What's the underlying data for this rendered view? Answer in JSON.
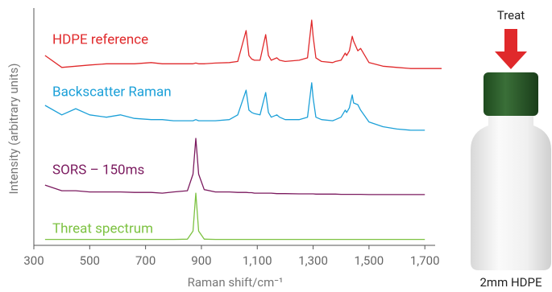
{
  "chart_data": {
    "type": "line",
    "xlabel": "Raman shift/cm⁻¹",
    "ylabel": "Intensity (arbitrary units)",
    "x": [
      340,
      400,
      450,
      500,
      560,
      610,
      660,
      720,
      760,
      800,
      850,
      870,
      880,
      890,
      910,
      950,
      1000,
      1030,
      1060,
      1070,
      1080,
      1090,
      1110,
      1130,
      1140,
      1150,
      1170,
      1180,
      1200,
      1250,
      1280,
      1295,
      1300,
      1310,
      1330,
      1370,
      1380,
      1400,
      1415,
      1420,
      1430,
      1440,
      1445,
      1460,
      1470,
      1500,
      1550,
      1600,
      1650,
      1700,
      1760
    ],
    "series": [
      {
        "name": "HDPE reference",
        "color": "#e0292b",
        "values": [
          80,
          75,
          75.5,
          76,
          76.5,
          76.5,
          76.5,
          77,
          76.5,
          76.5,
          76.5,
          76.5,
          76.8,
          76.5,
          76.5,
          76.8,
          77,
          77.5,
          90.5,
          80,
          78.5,
          78,
          78,
          88.8,
          80,
          78,
          79,
          78,
          77.5,
          78,
          79,
          94.9,
          88,
          79,
          77.5,
          77,
          77.5,
          78,
          81,
          80,
          82,
          88.1,
          86,
          82,
          83,
          77,
          75.5,
          75,
          74.5,
          74.5,
          74.5
        ]
      },
      {
        "name": "Backscatter Raman",
        "color": "#1ca0d8",
        "values": [
          59,
          55,
          57.6,
          55,
          54,
          55,
          53.5,
          53,
          53,
          52.5,
          52.5,
          52.5,
          53,
          52.5,
          52.5,
          52.5,
          53,
          55,
          65.4,
          57,
          56,
          55.5,
          55,
          64.4,
          56,
          54,
          55,
          54,
          53,
          53,
          54,
          68.5,
          62,
          54,
          53,
          52.5,
          53,
          54,
          57,
          56,
          58,
          63.4,
          60,
          59.3,
          57,
          52,
          50,
          49,
          48.5,
          48.5,
          null
        ]
      },
      {
        "name": "SORS – 150ms",
        "color": "#7b1a5f",
        "values": [
          25.4,
          23,
          23,
          22.5,
          22.5,
          22.5,
          22.3,
          22.3,
          22,
          22.5,
          23,
          30,
          45.1,
          30,
          23.5,
          22.5,
          22.5,
          22.3,
          22.3,
          22.2,
          22.2,
          22,
          22,
          22,
          22,
          22,
          21.8,
          21.8,
          21.8,
          21.7,
          21.7,
          21.7,
          21.7,
          21.6,
          21.6,
          21.6,
          21.6,
          21.5,
          21.5,
          21.5,
          21.5,
          21.5,
          21.5,
          21.5,
          21.5,
          21.4,
          21.4,
          21.4,
          21.4,
          21.4,
          null
        ]
      },
      {
        "name": "Threat spectrum",
        "color": "#7dc242",
        "values": [
          2.5,
          2.5,
          2.5,
          2.5,
          2.5,
          2.5,
          2.5,
          2.5,
          2.5,
          2.5,
          2.6,
          6,
          22,
          6,
          2.6,
          2.5,
          2.5,
          2.5,
          2.5,
          2.5,
          2.5,
          2.5,
          2.5,
          2.5,
          2.5,
          2.5,
          2.5,
          2.5,
          2.5,
          2.5,
          2.5,
          2.5,
          2.5,
          2.5,
          2.5,
          2.5,
          2.5,
          2.5,
          2.5,
          2.5,
          2.5,
          2.5,
          2.5,
          2.5,
          2.5,
          2.5,
          2.5,
          2.5,
          2.5,
          2.5,
          null
        ]
      }
    ],
    "xlim": [
      300,
      1760
    ],
    "ylim": [
      0,
      100
    ],
    "xticks": [
      300,
      500,
      700,
      900,
      {
        "value": 1100,
        "label": "1,100"
      },
      {
        "value": 1300,
        "label": "1,300"
      },
      {
        "value": 1500,
        "label": "1,500"
      },
      {
        "value": 1700,
        "label": "1,700"
      }
    ]
  },
  "image_labels": {
    "top": "Treat",
    "bottom": "2mm HDPE"
  }
}
